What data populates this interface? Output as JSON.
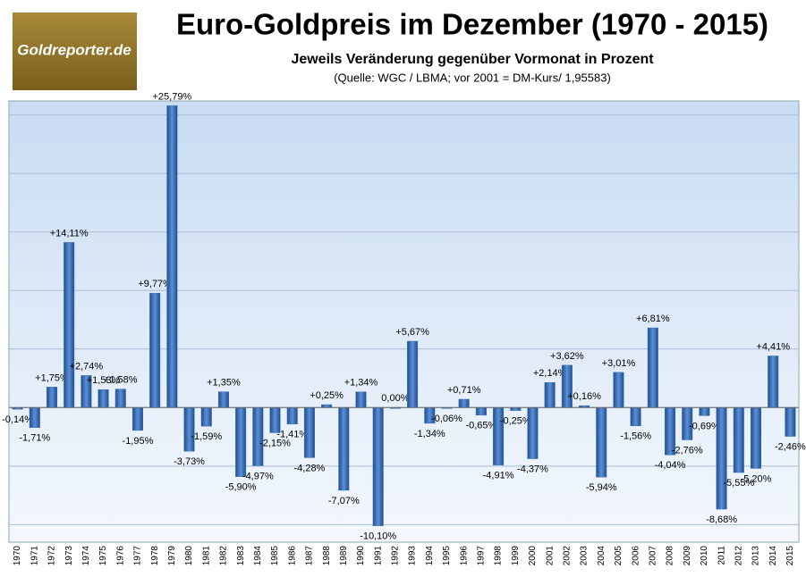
{
  "logo": "Goldreporter.de",
  "chart_data": {
    "type": "bar",
    "title": "Euro-Goldpreis im Dezember (1970 - 2015)",
    "subtitle": "Jeweils Veränderung gegenüber Vormonat in Prozent",
    "source": "(Quelle: WGC / LBMA; vor 2001 = DM-Kurs/ 1,95583)",
    "categories": [
      "1970",
      "1971",
      "1972",
      "1973",
      "1974",
      "1975",
      "1976",
      "1977",
      "1978",
      "1979",
      "1980",
      "1981",
      "1982",
      "1983",
      "1984",
      "1985",
      "1986",
      "1987",
      "1988",
      "1989",
      "1990",
      "1991",
      "1992",
      "1993",
      "1994",
      "1995",
      "1996",
      "1997",
      "1998",
      "1999",
      "2000",
      "2001",
      "2002",
      "2003",
      "2004",
      "2005",
      "2006",
      "2007",
      "2008",
      "2009",
      "2010",
      "2011",
      "2012",
      "2013",
      "2014",
      "2015"
    ],
    "values": [
      -0.14,
      -1.71,
      1.75,
      14.11,
      2.74,
      1.53,
      1.58,
      -1.95,
      9.77,
      25.79,
      -3.73,
      -1.59,
      1.35,
      -5.9,
      -4.97,
      -2.15,
      -1.41,
      -4.28,
      0.25,
      -7.07,
      1.34,
      -10.1,
      0.0,
      5.67,
      -1.34,
      -0.06,
      0.71,
      -0.65,
      -4.91,
      -0.25,
      -4.37,
      2.14,
      3.62,
      0.16,
      -5.94,
      3.01,
      -1.56,
      6.81,
      -4.04,
      -2.76,
      -0.69,
      -8.68,
      -5.55,
      -5.2,
      4.41,
      -2.46
    ],
    "value_labels": [
      "-0,14%",
      "-1,71%",
      "+1,75%",
      "+14,11%",
      "+2,74%",
      "+1,53%",
      "+1,58%",
      "-1,95%",
      "+9,77%",
      "+25,79%",
      "-3,73%",
      "-1,59%",
      "+1,35%",
      "-5,90%",
      "-4,97%",
      "-2,15%",
      "-1,41%",
      "-4,28%",
      "+0,25%",
      "-7,07%",
      "+1,34%",
      "-10,10%",
      "0,00%",
      "+5,67%",
      "-1,34%",
      "-0,06%",
      "+0,71%",
      "-0,65%",
      "-4,91%",
      "-0,25%",
      "-4,37%",
      "+2,14%",
      "+3,62%",
      "+0,16%",
      "-5,94%",
      "+3,01%",
      "-1,56%",
      "+6,81%",
      "-4,04%",
      "-2,76%",
      "-0,69%",
      "-8,68%",
      "-5,55%",
      "-5,20%",
      "+4,41%",
      "-2,46%"
    ],
    "color": "#3a6fb8",
    "ylim": [
      -11.5,
      26.2
    ],
    "yticks": [
      -10,
      -5,
      0,
      5,
      10,
      15,
      20,
      25
    ],
    "grid": true
  }
}
